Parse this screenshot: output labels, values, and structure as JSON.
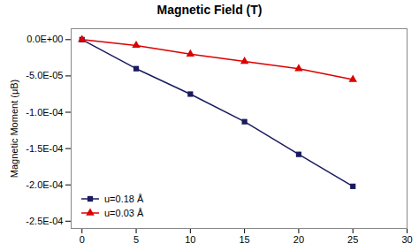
{
  "chart_data": {
    "type": "line",
    "title": "Magnetic Field (T)",
    "ylabel": "Magnetic Moment (μB)",
    "x": [
      0,
      5,
      10,
      15,
      20,
      25
    ],
    "series": [
      {
        "name": "u=0.18 Å",
        "color": "#1a1a5e",
        "marker": "square",
        "values": [
          0.0,
          -4e-05,
          -7.5e-05,
          -0.000113,
          -0.000158,
          -0.000202
        ]
      },
      {
        "name": "u=0.03 Å",
        "color": "#dd0000",
        "marker": "triangle",
        "values": [
          0.0,
          -8e-06,
          -2e-05,
          -3e-05,
          -4e-05,
          -5.5e-05
        ]
      }
    ],
    "xlim": [
      -1,
      30
    ],
    "xticks": [
      0,
      5,
      10,
      15,
      20,
      25,
      30
    ],
    "ylim": [
      -0.00026,
      1.5e-05
    ],
    "yticks": [
      {
        "value": 0.0,
        "label": "0.0E+00"
      },
      {
        "value": -5e-05,
        "label": "-5.0E-05"
      },
      {
        "value": -0.0001,
        "label": "-1.0E-04"
      },
      {
        "value": -0.00015,
        "label": "-1.5E-04"
      },
      {
        "value": -0.0002,
        "label": "-2.0E-04"
      },
      {
        "value": -0.00025,
        "label": "-2.5E-04"
      }
    ],
    "legend": "lower left",
    "grid": false
  }
}
